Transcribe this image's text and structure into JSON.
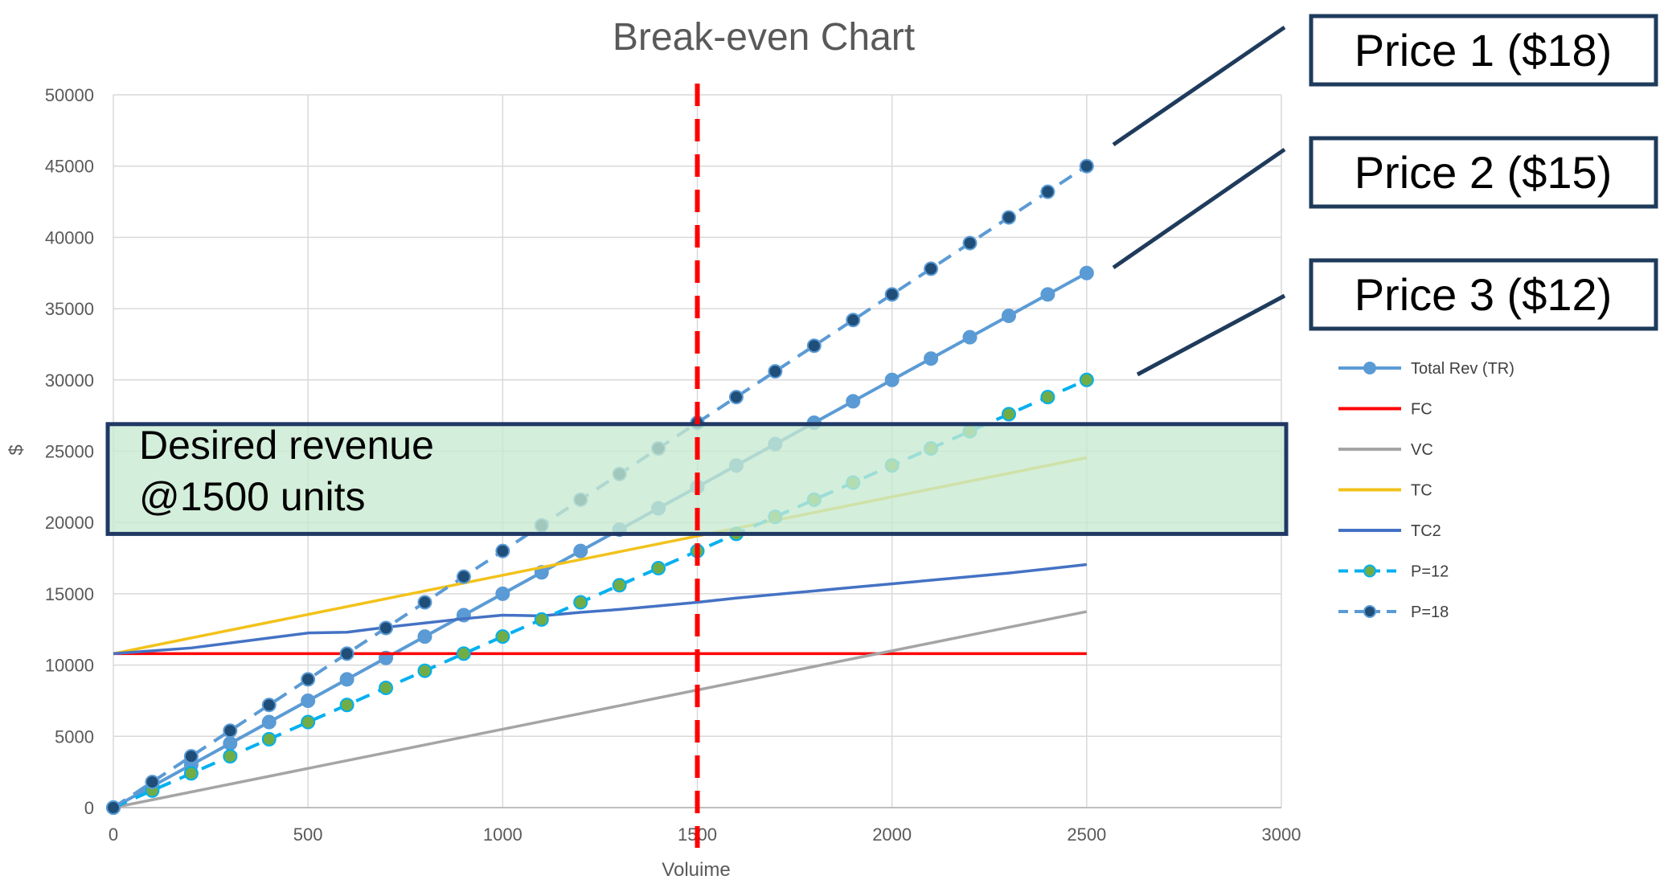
{
  "chart_data": {
    "type": "line",
    "title": "Break-even Chart",
    "xlabel": "Voluime",
    "ylabel": "$",
    "xlim": [
      0,
      3000
    ],
    "ylim": [
      0,
      50000
    ],
    "xticks": [
      0,
      500,
      1000,
      1500,
      2000,
      2500,
      3000
    ],
    "yticks": [
      0,
      5000,
      10000,
      15000,
      20000,
      25000,
      30000,
      35000,
      40000,
      45000,
      50000
    ],
    "grid": true,
    "legend_position": "right",
    "x": [
      0,
      100,
      200,
      300,
      400,
      500,
      600,
      700,
      800,
      900,
      1000,
      1100,
      1200,
      1300,
      1400,
      1500,
      1600,
      1700,
      1800,
      1900,
      2000,
      2100,
      2200,
      2300,
      2400,
      2500
    ],
    "series": [
      {
        "name": "Total Rev (TR)",
        "color": "#5b9bd5",
        "dash": "solid",
        "marker": "circle",
        "marker_fill": "#5b9bd5",
        "values": [
          0,
          1500,
          3000,
          4500,
          6000,
          7500,
          9000,
          10500,
          12000,
          13500,
          15000,
          16500,
          18000,
          19500,
          21000,
          22500,
          24000,
          25500,
          27000,
          28500,
          30000,
          31500,
          33000,
          34500,
          36000,
          37500
        ]
      },
      {
        "name": "FC",
        "color": "#ff0000",
        "dash": "solid",
        "marker": "none",
        "values": [
          10800,
          10800,
          10800,
          10800,
          10800,
          10800,
          10800,
          10800,
          10800,
          10800,
          10800,
          10800,
          10800,
          10800,
          10800,
          10800,
          10800,
          10800,
          10800,
          10800,
          10800,
          10800,
          10800,
          10800,
          10800,
          10800
        ]
      },
      {
        "name": "VC",
        "color": "#a5a5a5",
        "dash": "solid",
        "marker": "none",
        "values": [
          0,
          550,
          1100,
          1650,
          2200,
          2750,
          3300,
          3850,
          4400,
          4950,
          5500,
          6050,
          6600,
          7150,
          7700,
          8250,
          8800,
          9350,
          9900,
          10450,
          11000,
          11550,
          12100,
          12650,
          13200,
          13750
        ]
      },
      {
        "name": "TC",
        "color": "#f2c21b",
        "dash": "solid",
        "marker": "none",
        "values": [
          10800,
          11350,
          11900,
          12450,
          13000,
          13550,
          14100,
          14650,
          15200,
          15750,
          16300,
          16850,
          17400,
          17950,
          18500,
          19050,
          19600,
          20150,
          20700,
          21250,
          21800,
          22350,
          22900,
          23450,
          24000,
          24550
        ]
      },
      {
        "name": "TC2",
        "color": "#4472c4",
        "dash": "solid",
        "marker": "none",
        "values": [
          10800,
          11000,
          11200,
          11550,
          11900,
          12250,
          12300,
          12650,
          12950,
          13250,
          13500,
          13450,
          13700,
          13900,
          14150,
          14400,
          14700,
          14950,
          15200,
          15450,
          15700,
          15950,
          16200,
          16450,
          16750,
          17050
        ]
      },
      {
        "name": "P=12",
        "color": "#00b0f0",
        "dash": "dashed",
        "marker": "circle",
        "marker_fill": "#70ad47",
        "values": [
          0,
          1200,
          2400,
          3600,
          4800,
          6000,
          7200,
          8400,
          9600,
          10800,
          12000,
          13200,
          14400,
          15600,
          16800,
          18000,
          19200,
          20400,
          21600,
          22800,
          24000,
          25200,
          26400,
          27600,
          28800,
          30000
        ]
      },
      {
        "name": "P=18",
        "color": "#5b9bd5",
        "dash": "dashed",
        "marker": "circle",
        "marker_fill": "#1f4e79",
        "values": [
          0,
          1800,
          3600,
          5400,
          7200,
          9000,
          10800,
          12600,
          14400,
          16200,
          18000,
          19800,
          21600,
          23400,
          25200,
          27000,
          28800,
          30600,
          32400,
          34200,
          36000,
          37800,
          39600,
          41400,
          43200,
          45000
        ]
      }
    ],
    "vertical_marker": {
      "x": 1500,
      "color": "#ff0000",
      "style": "dashed"
    },
    "highlight_band": {
      "y_from": 19200,
      "y_to": 26900,
      "fill": "#c6e9cf",
      "border": "#203864",
      "lines": [
        "Desired revenue",
        "@1500 units"
      ]
    },
    "price_callouts": [
      {
        "label": "Price 1 ($18)",
        "pointer_color": "#1f3b5c"
      },
      {
        "label": "Price 2 ($15)",
        "pointer_color": "#1f3b5c"
      },
      {
        "label": "Price 3 ($12)",
        "pointer_color": "#1f3b5c"
      }
    ]
  }
}
